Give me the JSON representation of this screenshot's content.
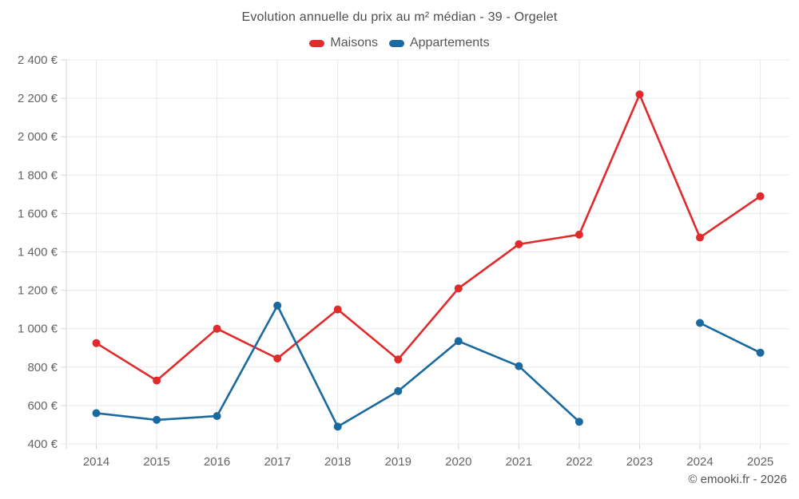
{
  "chart_data": {
    "type": "line",
    "title": "Evolution annuelle du prix au m² médian - 39 - Orgelet",
    "categories": [
      "2014",
      "2015",
      "2016",
      "2017",
      "2018",
      "2019",
      "2020",
      "2021",
      "2022",
      "2023",
      "2024",
      "2025"
    ],
    "series": [
      {
        "name": "Maisons",
        "color": "#e02a2b",
        "values": [
          925,
          730,
          1000,
          845,
          1100,
          840,
          1210,
          1440,
          1490,
          2220,
          1475,
          1690
        ]
      },
      {
        "name": "Appartements",
        "color": "#1a6aa0",
        "values": [
          560,
          525,
          545,
          1120,
          490,
          675,
          935,
          805,
          515,
          null,
          1030,
          875
        ]
      }
    ],
    "ylim": [
      400,
      2400
    ],
    "ytick_step": 200,
    "ytick_suffix": " €",
    "xlabel": "",
    "ylabel": "",
    "grid": true,
    "legend_position": "top"
  },
  "footer": {
    "credit": "© emooki.fr - 2026"
  },
  "style": {
    "grid_color": "#e8e8e8",
    "axis_color": "#d4d4d4",
    "background": "#ffffff"
  }
}
